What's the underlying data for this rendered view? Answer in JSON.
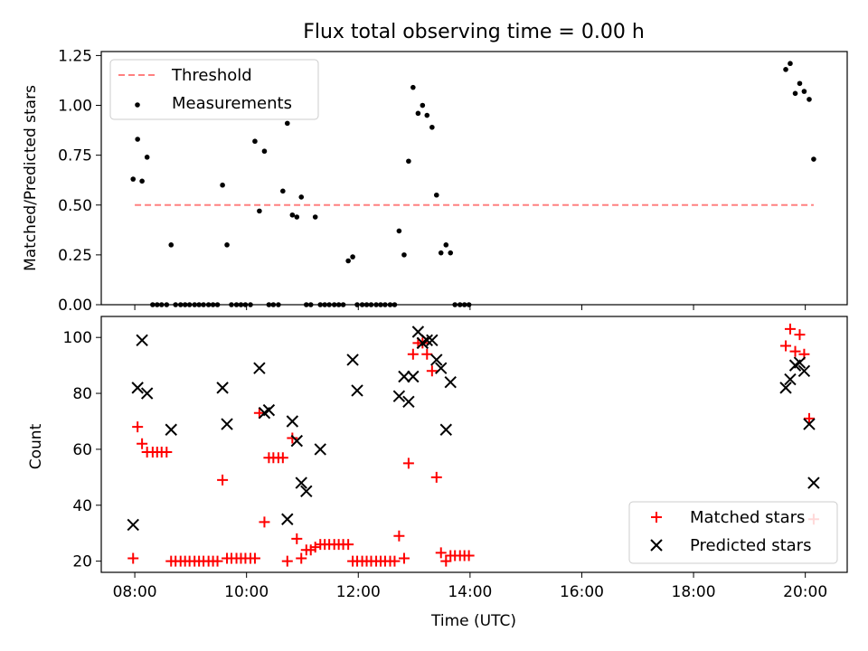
{
  "figure_title": "Flux total observing time = 0.00 h",
  "chart_data": [
    {
      "type": "scatter",
      "panel": "top",
      "ylabel": "Matched/Predicted stars",
      "ylim": [
        0,
        1.27
      ],
      "yticks": [
        0,
        0.25,
        0.5,
        0.75,
        1.0,
        1.25
      ],
      "ytick_labels": [
        "0.00",
        "0.25",
        "0.50",
        "0.75",
        "1.00",
        "1.25"
      ],
      "threshold": {
        "name": "Threshold",
        "value": 0.5,
        "x_range": [
          8.0,
          20.15
        ],
        "color": "#ff8080",
        "style": "dashed"
      },
      "legend_position": "top-left",
      "series": [
        {
          "name": "Measurements",
          "marker": "dot",
          "color": "#000000",
          "x": [
            7.97,
            8.05,
            8.13,
            8.22,
            8.32,
            8.4,
            8.48,
            8.57,
            8.65,
            8.73,
            8.82,
            8.9,
            8.98,
            9.07,
            9.15,
            9.23,
            9.32,
            9.4,
            9.48,
            9.57,
            9.65,
            9.73,
            9.82,
            9.9,
            9.98,
            10.07,
            10.15,
            10.23,
            10.32,
            10.4,
            10.48,
            10.57,
            10.65,
            10.73,
            10.82,
            10.9,
            10.98,
            11.07,
            11.15,
            11.23,
            11.32,
            11.4,
            11.48,
            11.57,
            11.65,
            11.73,
            11.82,
            11.9,
            11.98,
            12.07,
            12.15,
            12.23,
            12.32,
            12.4,
            12.48,
            12.57,
            12.65,
            12.73,
            12.82,
            12.9,
            12.98,
            13.07,
            13.15,
            13.23,
            13.32,
            13.4,
            13.48,
            13.57,
            13.65,
            13.73,
            13.82,
            13.9,
            13.98,
            19.65,
            19.73,
            19.82,
            19.9,
            19.98,
            20.07,
            20.15
          ],
          "y": [
            0.63,
            0.83,
            0.62,
            0.74,
            0,
            0,
            0,
            0,
            0.3,
            0,
            0,
            0,
            0,
            0,
            0,
            0,
            0,
            0,
            0,
            0.6,
            0.3,
            0,
            0,
            0,
            0,
            0,
            0.82,
            0.47,
            0.77,
            0,
            0,
            0,
            0.57,
            0.91,
            0.45,
            0.44,
            0.54,
            0,
            0,
            0.44,
            0,
            0,
            0,
            0,
            0,
            0,
            0.22,
            0.24,
            0,
            0,
            0,
            0,
            0,
            0,
            0,
            0,
            0,
            0.37,
            0.25,
            0.72,
            1.09,
            0.96,
            1.0,
            0.95,
            0.89,
            0.55,
            0.26,
            0.3,
            0.26,
            0,
            0,
            0,
            0,
            1.18,
            1.21,
            1.06,
            1.11,
            1.07,
            1.03,
            0.73
          ]
        }
      ]
    },
    {
      "type": "scatter",
      "panel": "bottom",
      "xlabel": "Time (UTC)",
      "ylabel": "Count",
      "xlim": [
        7.4,
        20.75
      ],
      "ylim": [
        16,
        107.5
      ],
      "xticks": [
        8,
        10,
        12,
        14,
        16,
        18,
        20
      ],
      "xtick_labels": [
        "08:00",
        "10:00",
        "12:00",
        "14:00",
        "16:00",
        "18:00",
        "20:00"
      ],
      "yticks": [
        20,
        40,
        60,
        80,
        100
      ],
      "ytick_labels": [
        "20",
        "40",
        "60",
        "80",
        "100"
      ],
      "legend_position": "bottom-right",
      "series": [
        {
          "name": "Matched stars",
          "marker": "plus",
          "color": "#ff0000",
          "x": [
            7.97,
            8.05,
            8.13,
            8.22,
            8.32,
            8.4,
            8.48,
            8.57,
            8.65,
            8.73,
            8.82,
            8.9,
            8.98,
            9.07,
            9.15,
            9.23,
            9.32,
            9.4,
            9.48,
            9.57,
            9.65,
            9.73,
            9.82,
            9.9,
            9.98,
            10.07,
            10.15,
            10.23,
            10.32,
            10.4,
            10.48,
            10.57,
            10.65,
            10.73,
            10.82,
            10.9,
            10.98,
            11.07,
            11.15,
            11.23,
            11.32,
            11.4,
            11.48,
            11.57,
            11.65,
            11.73,
            11.82,
            11.9,
            11.98,
            12.07,
            12.15,
            12.23,
            12.32,
            12.4,
            12.48,
            12.57,
            12.65,
            12.73,
            12.82,
            12.9,
            12.98,
            13.07,
            13.15,
            13.23,
            13.32,
            13.4,
            13.48,
            13.57,
            13.65,
            13.73,
            13.82,
            13.9,
            13.98,
            19.65,
            19.73,
            19.82,
            19.9,
            19.98,
            20.07,
            20.15
          ],
          "y": [
            21,
            68,
            62,
            59,
            59,
            59,
            59,
            59,
            20,
            20,
            20,
            20,
            20,
            20,
            20,
            20,
            20,
            20,
            20,
            49,
            21,
            21,
            21,
            21,
            21,
            21,
            21,
            73,
            34,
            57,
            57,
            57,
            57,
            20,
            64,
            28,
            21,
            24,
            24,
            25,
            26,
            26,
            26,
            26,
            26,
            26,
            26,
            20,
            20,
            20,
            20,
            20,
            20,
            20,
            20,
            20,
            20,
            29,
            21,
            55,
            94,
            98,
            98,
            94,
            88,
            50,
            23,
            20,
            22,
            22,
            22,
            22,
            22,
            97,
            103,
            95,
            101,
            94,
            71,
            35
          ]
        },
        {
          "name": "Predicted stars",
          "marker": "x",
          "color": "#000000",
          "x": [
            7.97,
            8.05,
            8.13,
            8.22,
            8.65,
            9.57,
            9.65,
            10.23,
            10.32,
            10.4,
            10.73,
            10.82,
            10.9,
            10.98,
            11.07,
            11.32,
            11.9,
            11.98,
            12.73,
            12.82,
            12.9,
            12.98,
            13.07,
            13.15,
            13.23,
            13.32,
            13.4,
            13.48,
            13.57,
            13.65,
            19.65,
            19.73,
            19.82,
            19.9,
            19.98,
            20.07,
            20.15
          ],
          "y": [
            33,
            82,
            99,
            80,
            67,
            82,
            69,
            89,
            73,
            74,
            35,
            70,
            63,
            48,
            45,
            60,
            92,
            81,
            79,
            86,
            77,
            86,
            102,
            98,
            99,
            99,
            92,
            89,
            67,
            84,
            82,
            85,
            90,
            91,
            88,
            69,
            48
          ]
        }
      ]
    }
  ]
}
